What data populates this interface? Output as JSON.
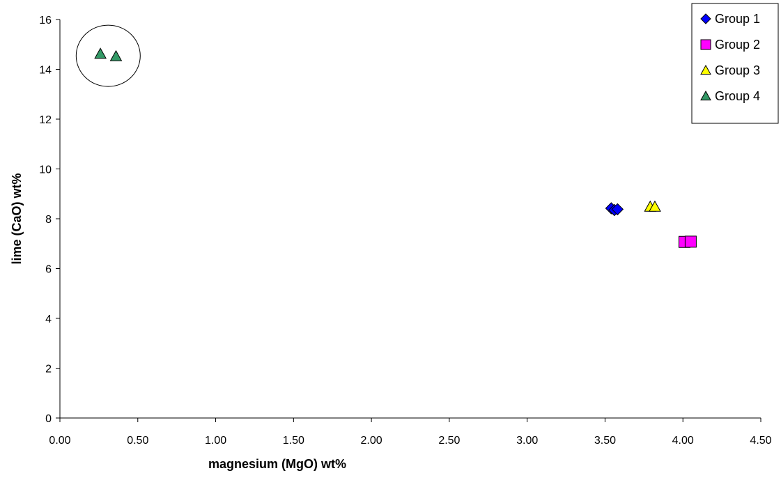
{
  "chart_data": {
    "type": "scatter",
    "title": "",
    "xlabel": "magnesium (MgO) wt%",
    "ylabel": "lime (CaO) wt%",
    "xlim": [
      0,
      4.5
    ],
    "ylim": [
      0,
      16
    ],
    "x_ticks": [
      "0.00",
      "0.50",
      "1.00",
      "1.50",
      "2.00",
      "2.50",
      "3.00",
      "3.50",
      "4.00",
      "4.50"
    ],
    "y_ticks": [
      "0",
      "2",
      "4",
      "6",
      "8",
      "10",
      "12",
      "14",
      "16"
    ],
    "grid": false,
    "legend_position": "top-right",
    "series": [
      {
        "name": "Group 1",
        "marker": "diamond",
        "color": "#0000FF",
        "points": [
          [
            3.54,
            8.42
          ],
          [
            3.56,
            8.35
          ],
          [
            3.58,
            8.38
          ]
        ]
      },
      {
        "name": "Group 2",
        "marker": "square",
        "color": "#FF00FF",
        "points": [
          [
            4.01,
            7.07
          ],
          [
            4.05,
            7.08
          ]
        ]
      },
      {
        "name": "Group 3",
        "marker": "triangle",
        "color": "#FFFF00",
        "points": [
          [
            3.79,
            8.48
          ],
          [
            3.82,
            8.48
          ]
        ]
      },
      {
        "name": "Group 4",
        "marker": "triangle",
        "color": "#339966",
        "points": [
          [
            0.26,
            14.62
          ],
          [
            0.36,
            14.52
          ]
        ]
      }
    ],
    "annotations": [
      {
        "type": "circle",
        "encloses": "Group 4"
      }
    ]
  }
}
